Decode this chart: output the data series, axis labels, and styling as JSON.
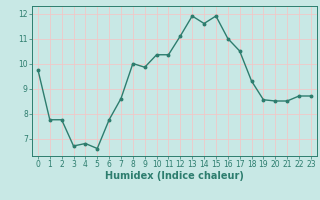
{
  "x": [
    0,
    1,
    2,
    3,
    4,
    5,
    6,
    7,
    8,
    9,
    10,
    11,
    12,
    13,
    14,
    15,
    16,
    17,
    18,
    19,
    20,
    21,
    22,
    23
  ],
  "y": [
    9.75,
    7.75,
    7.75,
    6.7,
    6.8,
    6.6,
    7.75,
    8.6,
    10.0,
    9.85,
    10.35,
    10.35,
    11.1,
    11.9,
    11.6,
    11.9,
    11.0,
    10.5,
    9.3,
    8.55,
    8.5,
    8.5,
    8.7,
    8.7
  ],
  "line_color": "#2d7d6e",
  "marker": "o",
  "marker_size": 1.8,
  "line_width": 1.0,
  "bg_color": "#c8e8e5",
  "grid_color": "#f0c8c8",
  "tick_color": "#2d7d6e",
  "label_color": "#2d7d6e",
  "xlabel": "Humidex (Indice chaleur)",
  "xlabel_fontsize": 7.0,
  "xlabel_fontweight": "bold",
  "xlim": [
    -0.5,
    23.5
  ],
  "ylim": [
    6.3,
    12.3
  ],
  "yticks": [
    7,
    8,
    9,
    10,
    11,
    12
  ],
  "xticks": [
    0,
    1,
    2,
    3,
    4,
    5,
    6,
    7,
    8,
    9,
    10,
    11,
    12,
    13,
    14,
    15,
    16,
    17,
    18,
    19,
    20,
    21,
    22,
    23
  ],
  "tick_fontsize": 5.5
}
